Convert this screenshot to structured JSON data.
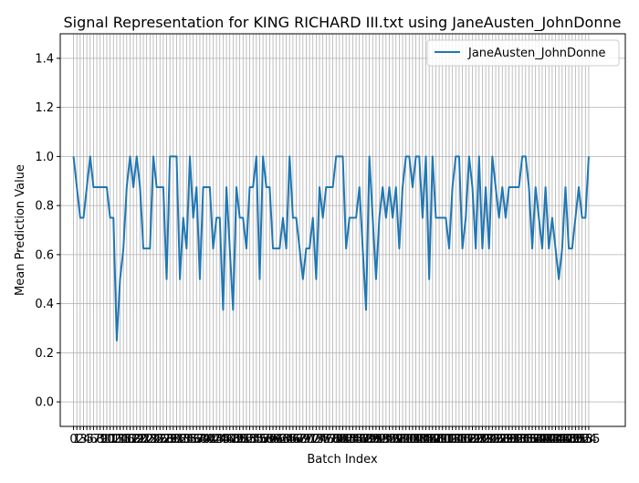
{
  "chart_data": {
    "type": "line",
    "title": "Signal Representation for KING RICHARD III.txt using JaneAusten_JohnDonne",
    "xlabel": "Batch Index",
    "ylabel": "Mean Prediction Value",
    "xlim": [
      -4,
      166
    ],
    "ylim": [
      -0.1,
      1.5
    ],
    "yticks": [
      0.0,
      0.2,
      0.4,
      0.6,
      0.8,
      1.0,
      1.2,
      1.4
    ],
    "ytick_labels": [
      "0.0",
      "0.2",
      "0.4",
      "0.6",
      "0.8",
      "1.0",
      "1.2",
      "1.4"
    ],
    "xtick_step": 1,
    "grid": true,
    "legend_position": "top-right",
    "colors": {
      "line": "#1f77b4",
      "grid": "#b0b0b0"
    },
    "series": [
      {
        "name": "JaneAusten_JohnDonne",
        "x_start": 0,
        "values": [
          1.0,
          0.875,
          0.75,
          0.75,
          0.875,
          1.0,
          0.875,
          0.875,
          0.875,
          0.875,
          0.875,
          0.75,
          0.75,
          0.25,
          0.5,
          0.625,
          0.875,
          1.0,
          0.875,
          1.0,
          0.875,
          0.625,
          0.625,
          0.625,
          1.0,
          0.875,
          0.875,
          0.875,
          0.5,
          1.0,
          1.0,
          1.0,
          0.5,
          0.75,
          0.625,
          1.0,
          0.75,
          0.875,
          0.5,
          0.875,
          0.875,
          0.875,
          0.625,
          0.75,
          0.75,
          0.375,
          0.875,
          0.625,
          0.375,
          0.875,
          0.75,
          0.75,
          0.625,
          0.875,
          0.875,
          1.0,
          0.5,
          1.0,
          0.875,
          0.875,
          0.625,
          0.625,
          0.625,
          0.75,
          0.625,
          1.0,
          0.75,
          0.75,
          0.625,
          0.5,
          0.625,
          0.625,
          0.75,
          0.5,
          0.875,
          0.75,
          0.875,
          0.875,
          0.875,
          1.0,
          1.0,
          1.0,
          0.625,
          0.75,
          0.75,
          0.75,
          0.875,
          0.625,
          0.375,
          1.0,
          0.75,
          0.5,
          0.75,
          0.875,
          0.75,
          0.875,
          0.75,
          0.875,
          0.625,
          0.875,
          1.0,
          1.0,
          0.875,
          1.0,
          1.0,
          0.75,
          1.0,
          0.5,
          1.0,
          0.75,
          0.75,
          0.75,
          0.75,
          0.625,
          0.875,
          1.0,
          1.0,
          0.625,
          0.75,
          1.0,
          0.875,
          0.625,
          1.0,
          0.625,
          0.875,
          0.625,
          1.0,
          0.875,
          0.75,
          0.875,
          0.75,
          0.875,
          0.875,
          0.875,
          0.875,
          1.0,
          1.0,
          0.875,
          0.625,
          0.875,
          0.75,
          0.625,
          0.875,
          0.625,
          0.75,
          0.625,
          0.5,
          0.625,
          0.875,
          0.625,
          0.625,
          0.75,
          0.875,
          0.75,
          0.75,
          1.0
        ]
      }
    ]
  }
}
